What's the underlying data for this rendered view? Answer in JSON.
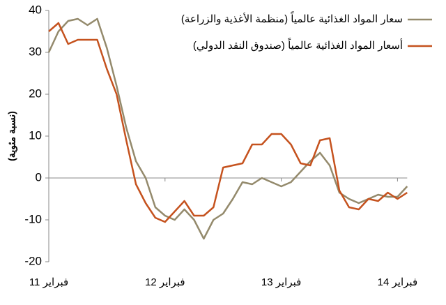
{
  "chart_data": {
    "type": "line",
    "y_label": "(نسبة مئوية)",
    "categories": [
      "فبراير 11",
      null,
      null,
      null,
      null,
      null,
      null,
      null,
      null,
      null,
      null,
      null,
      "فبراير 12",
      null,
      null,
      null,
      null,
      null,
      null,
      null,
      null,
      null,
      null,
      null,
      "فبراير 13",
      null,
      null,
      null,
      null,
      null,
      null,
      null,
      null,
      null,
      null,
      null,
      "فبراير 14",
      null
    ],
    "series": [
      {
        "name": "سعار المواد الغذائية عالمياً (منظمة الأغذية والزراعة)",
        "color": "#948a6c",
        "values": [
          30,
          35,
          37.5,
          38,
          36.5,
          38,
          31,
          22,
          12,
          4,
          0,
          -7,
          -9,
          -10,
          -7.5,
          -10,
          -14.5,
          -10,
          -8.5,
          -5,
          -1,
          -1.5,
          0,
          -1,
          -2,
          -1,
          1.5,
          4,
          6,
          3,
          -3.5,
          -5,
          -6,
          -5,
          -4,
          -4.5,
          -4.5,
          -2
        ]
      },
      {
        "name": "أسعار المواد الغذائية عالمياً (صندوق النقد الدولي)",
        "color": "#c5521e",
        "values": [
          35,
          37,
          32,
          33,
          33,
          33,
          26,
          20,
          9,
          -1.5,
          -6,
          -9.5,
          -10.5,
          -8,
          -5.5,
          -9,
          -9,
          -7,
          2.5,
          3,
          3.5,
          8,
          8,
          10.5,
          10.5,
          8,
          3.5,
          3,
          9,
          9.5,
          -3,
          -7,
          -7.5,
          -5,
          -5.5,
          -3.5,
          -5,
          -3.5
        ]
      }
    ],
    "ylim": [
      -20,
      40
    ],
    "yticks": [
      -20,
      -10,
      0,
      10,
      20,
      30,
      40
    ],
    "legend": "top-right"
  }
}
